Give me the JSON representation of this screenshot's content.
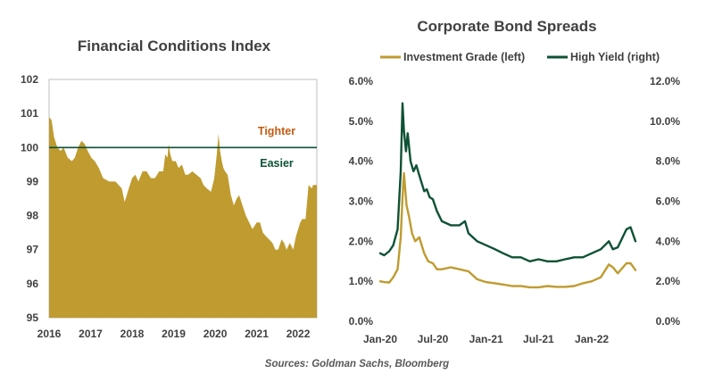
{
  "colors": {
    "gold": "#BF9B30",
    "green": "#0E5234",
    "tighter": "#C55A11",
    "text": "#404040"
  },
  "source": "Sources: Goldman Sachs, Bloomberg",
  "chart_data": [
    {
      "type": "area",
      "title": "Financial Conditions Index",
      "xlim": [
        2016.0,
        2022.45
      ],
      "ylim": [
        95,
        102
      ],
      "yticks": [
        "95",
        "96",
        "97",
        "98",
        "99",
        "100",
        "101",
        "102"
      ],
      "xticks": [
        "2016",
        "2017",
        "2018",
        "2019",
        "2020",
        "2021",
        "2022"
      ],
      "reference_line": {
        "y": 100.0,
        "label_above": "Tighter",
        "label_below": "Easier"
      },
      "series": [
        {
          "x": [
            2016.0,
            2016.06,
            2016.12,
            2016.2,
            2016.28,
            2016.35,
            2016.45,
            2016.55,
            2016.62,
            2016.7,
            2016.78,
            2016.86,
            2016.93,
            2017.02,
            2017.1,
            2017.2,
            2017.3,
            2017.45,
            2017.6,
            2017.75,
            2017.82,
            2017.92,
            2018.0,
            2018.08,
            2018.15,
            2018.25,
            2018.35,
            2018.45,
            2018.55,
            2018.65,
            2018.75,
            2018.8,
            2018.85,
            2018.88,
            2018.92,
            2018.97,
            2019.05,
            2019.12,
            2019.2,
            2019.28,
            2019.35,
            2019.45,
            2019.55,
            2019.65,
            2019.72,
            2019.8,
            2019.9,
            2019.98,
            2020.04,
            2020.08,
            2020.12,
            2020.16,
            2020.2,
            2020.24,
            2020.3,
            2020.38,
            2020.45,
            2020.52,
            2020.58,
            2020.66,
            2020.74,
            2020.82,
            2020.9,
            2021.0,
            2021.08,
            2021.15,
            2021.22,
            2021.3,
            2021.38,
            2021.45,
            2021.52,
            2021.6,
            2021.66,
            2021.72,
            2021.8,
            2021.88,
            2021.95,
            2022.0,
            2022.05,
            2022.1,
            2022.18,
            2022.25,
            2022.33,
            2022.36,
            2022.4,
            2022.45
          ],
          "y": [
            100.9,
            100.8,
            100.3,
            100.0,
            99.9,
            100.0,
            99.7,
            99.6,
            99.7,
            100.0,
            100.2,
            100.1,
            99.9,
            99.7,
            99.6,
            99.4,
            99.1,
            99.0,
            99.0,
            98.8,
            98.4,
            98.8,
            99.1,
            99.2,
            99.0,
            99.3,
            99.3,
            99.1,
            99.1,
            99.3,
            99.3,
            99.8,
            99.7,
            100.1,
            99.8,
            99.6,
            99.6,
            99.4,
            99.5,
            99.2,
            99.2,
            99.3,
            99.2,
            99.1,
            98.9,
            98.8,
            98.7,
            99.1,
            99.8,
            100.4,
            99.9,
            99.6,
            99.4,
            99.3,
            99.2,
            98.6,
            98.3,
            98.5,
            98.6,
            98.3,
            98.0,
            97.8,
            97.6,
            97.8,
            97.8,
            97.5,
            97.4,
            97.3,
            97.2,
            97.0,
            97.0,
            97.3,
            97.2,
            97.0,
            97.2,
            97.0,
            97.4,
            97.6,
            97.8,
            97.9,
            97.9,
            98.9,
            98.8,
            98.9,
            98.9,
            98.9
          ]
        }
      ]
    },
    {
      "type": "line",
      "title": "Corporate Bond Spreads",
      "x_axis": "dates",
      "xlim": [
        "2020-01-01",
        "2022-06-01"
      ],
      "xticks": [
        "Jan-20",
        "Jul-20",
        "Jan-21",
        "Jul-21",
        "Jan-22"
      ],
      "left_axis": {
        "ylim": [
          0.0,
          6.0
        ],
        "ticks": [
          "0.0%",
          "1.0%",
          "2.0%",
          "3.0%",
          "4.0%",
          "5.0%",
          "6.0%"
        ]
      },
      "right_axis": {
        "ylim": [
          0.0,
          12.0
        ],
        "ticks": [
          "0.0%",
          "2.0%",
          "4.0%",
          "6.0%",
          "8.0%",
          "10.0%",
          "12.0%"
        ]
      },
      "legend": "top",
      "series": [
        {
          "name": "Investment Grade (left)",
          "axis": "left",
          "x": [
            "2020-01-01",
            "2020-01-15",
            "2020-02-01",
            "2020-02-15",
            "2020-03-01",
            "2020-03-12",
            "2020-03-18",
            "2020-03-23",
            "2020-04-01",
            "2020-04-10",
            "2020-04-20",
            "2020-05-01",
            "2020-05-15",
            "2020-06-01",
            "2020-06-15",
            "2020-07-01",
            "2020-07-15",
            "2020-08-01",
            "2020-09-01",
            "2020-10-01",
            "2020-11-01",
            "2020-12-01",
            "2021-01-01",
            "2021-02-01",
            "2021-03-01",
            "2021-04-01",
            "2021-05-01",
            "2021-06-01",
            "2021-07-01",
            "2021-08-01",
            "2021-09-01",
            "2021-10-01",
            "2021-11-01",
            "2021-12-01",
            "2022-01-01",
            "2022-02-01",
            "2022-03-01",
            "2022-03-15",
            "2022-04-01",
            "2022-05-01",
            "2022-05-15",
            "2022-06-01"
          ],
          "y": [
            1.0,
            0.98,
            0.97,
            1.1,
            1.3,
            2.1,
            3.1,
            3.7,
            2.9,
            2.6,
            2.2,
            2.0,
            2.1,
            1.7,
            1.5,
            1.45,
            1.3,
            1.3,
            1.35,
            1.3,
            1.25,
            1.05,
            0.98,
            0.95,
            0.92,
            0.88,
            0.88,
            0.85,
            0.85,
            0.88,
            0.86,
            0.86,
            0.88,
            0.95,
            1.0,
            1.1,
            1.42,
            1.35,
            1.2,
            1.45,
            1.45,
            1.28
          ]
        },
        {
          "name": "High Yield (right)",
          "axis": "right",
          "x": [
            "2020-01-01",
            "2020-01-15",
            "2020-02-01",
            "2020-02-15",
            "2020-03-01",
            "2020-03-12",
            "2020-03-18",
            "2020-03-23",
            "2020-03-30",
            "2020-04-05",
            "2020-04-15",
            "2020-04-25",
            "2020-05-05",
            "2020-05-15",
            "2020-06-01",
            "2020-06-10",
            "2020-06-20",
            "2020-07-01",
            "2020-07-15",
            "2020-08-01",
            "2020-09-01",
            "2020-10-01",
            "2020-10-20",
            "2020-11-01",
            "2020-12-01",
            "2021-01-01",
            "2021-02-01",
            "2021-03-01",
            "2021-04-01",
            "2021-05-01",
            "2021-06-01",
            "2021-07-01",
            "2021-08-01",
            "2021-09-01",
            "2021-10-01",
            "2021-11-01",
            "2021-12-01",
            "2022-01-01",
            "2022-02-01",
            "2022-03-01",
            "2022-03-15",
            "2022-04-01",
            "2022-05-01",
            "2022-05-15",
            "2022-06-01"
          ],
          "y": [
            3.4,
            3.3,
            3.5,
            3.8,
            4.6,
            7.5,
            10.9,
            9.5,
            8.5,
            9.4,
            8.0,
            7.5,
            7.8,
            7.3,
            6.5,
            6.6,
            6.2,
            6.1,
            5.5,
            5.0,
            4.8,
            4.8,
            5.0,
            4.4,
            4.0,
            3.8,
            3.6,
            3.4,
            3.2,
            3.2,
            3.0,
            3.1,
            3.0,
            3.0,
            3.1,
            3.2,
            3.2,
            3.4,
            3.6,
            4.0,
            3.6,
            3.7,
            4.6,
            4.7,
            4.0
          ]
        }
      ]
    }
  ]
}
